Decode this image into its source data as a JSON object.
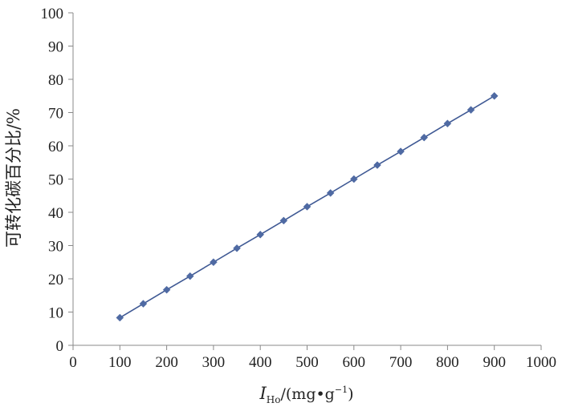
{
  "chart_data": {
    "type": "line",
    "title": "",
    "xlabel": {
      "symbol": "I",
      "subscript": "Ho",
      "unit_prefix": "/(mg•g",
      "unit_sup": "−1",
      "unit_suffix": ")"
    },
    "ylabel": "可转化碳百分比/%",
    "xlim": [
      0,
      1000
    ],
    "ylim": [
      0,
      100
    ],
    "xticks": [
      0,
      100,
      200,
      300,
      400,
      500,
      600,
      700,
      800,
      900,
      1000
    ],
    "yticks": [
      0,
      10,
      20,
      30,
      40,
      50,
      60,
      70,
      80,
      90,
      100
    ],
    "grid": false,
    "legend": "none",
    "series": [
      {
        "color": "#4f6aa3",
        "marker": "diamond",
        "x": [
          100,
          150,
          200,
          250,
          300,
          350,
          400,
          450,
          500,
          550,
          600,
          650,
          700,
          750,
          800,
          850,
          900
        ],
        "y": [
          8.3,
          12.5,
          16.7,
          20.8,
          25.0,
          29.2,
          33.3,
          37.5,
          41.7,
          45.8,
          50.0,
          54.2,
          58.3,
          62.5,
          66.7,
          70.8,
          75.0
        ]
      }
    ]
  }
}
